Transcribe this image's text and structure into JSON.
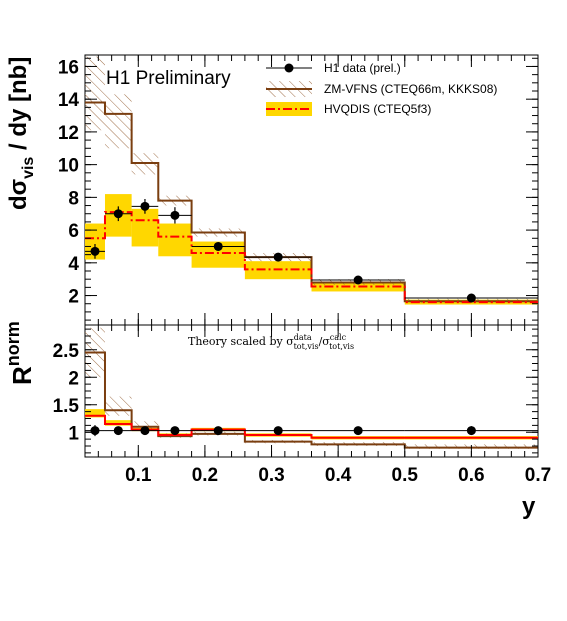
{
  "chart_data": [
    {
      "type": "line",
      "panel": "top",
      "ylabel": "dσ_vis / dy [nb]",
      "xlim": [
        0.02,
        0.7
      ],
      "ylim": [
        0.2,
        16.7
      ],
      "yticks": [
        2,
        4,
        6,
        8,
        10,
        12,
        14,
        16
      ],
      "annotation": "H1  Preliminary",
      "bin_edges": [
        0.02,
        0.05,
        0.09,
        0.13,
        0.18,
        0.26,
        0.36,
        0.5,
        0.7
      ],
      "series": [
        {
          "name": "H1 data (prel.)",
          "kind": "points",
          "x": [
            0.035,
            0.07,
            0.11,
            0.155,
            0.22,
            0.31,
            0.43,
            0.6
          ],
          "y": [
            4.7,
            7.0,
            7.45,
            6.9,
            5.0,
            4.35,
            2.95,
            1.85
          ],
          "yerr": [
            0.45,
            0.45,
            0.45,
            0.5,
            0.25,
            0.2,
            0.15,
            0.15
          ],
          "color": "#000000"
        },
        {
          "name": "ZM-VFNS (CTEQ66m, KKKS08)",
          "kind": "step-band",
          "values": [
            13.8,
            13.1,
            10.1,
            7.8,
            5.85,
            4.35,
            2.8,
            1.65
          ],
          "band_low": [
            12.1,
            11.0,
            9.4,
            7.5,
            5.6,
            4.1,
            2.65,
            1.55
          ],
          "band_high": [
            16.6,
            14.3,
            10.7,
            8.1,
            6.1,
            4.6,
            3.0,
            1.8
          ],
          "color": "#7a3e10"
        },
        {
          "name": "HVQDIS (CTEQ5f3)",
          "kind": "step-band",
          "values": [
            5.5,
            7.1,
            6.6,
            5.6,
            4.6,
            3.6,
            2.55,
            1.6
          ],
          "band_low": [
            4.2,
            5.6,
            5.0,
            4.4,
            3.7,
            3.0,
            2.25,
            1.45
          ],
          "band_high": [
            6.4,
            8.2,
            7.3,
            6.4,
            5.3,
            4.1,
            2.8,
            1.75
          ],
          "color": "#ff0000",
          "band_color": "#ffd700"
        }
      ]
    },
    {
      "type": "line",
      "panel": "bottom",
      "ylabel": "R^norm",
      "xlabel": "y",
      "xlim": [
        0.02,
        0.7
      ],
      "ylim": [
        0.55,
        2.95
      ],
      "yticks": [
        1,
        1.5,
        2,
        2.5
      ],
      "xticks": [
        0.1,
        0.2,
        0.3,
        0.4,
        0.5,
        0.6,
        0.7
      ],
      "annotation": "Theory scaled by σ^data_tot,vis/σ^calc_tot,vis",
      "bin_edges": [
        0.02,
        0.05,
        0.09,
        0.13,
        0.18,
        0.26,
        0.36,
        0.5,
        0.7
      ],
      "series": [
        {
          "name": "H1 data (prel.)",
          "kind": "points",
          "x": [
            0.035,
            0.07,
            0.11,
            0.155,
            0.22,
            0.31,
            0.43,
            0.6
          ],
          "y": [
            1.03,
            1.03,
            1.03,
            1.03,
            1.03,
            1.03,
            1.03,
            1.03
          ],
          "yerr": [
            0.1,
            0.06,
            0.06,
            0.06,
            0.05,
            0.05,
            0.05,
            0.08
          ],
          "color": "#000000"
        },
        {
          "name": "ZM-VFNS (CTEQ66m, KKKS08)",
          "kind": "step-band",
          "values": [
            2.45,
            1.4,
            1.1,
            0.93,
            0.97,
            0.83,
            0.78,
            0.72
          ],
          "band_low": [
            2.0,
            1.3,
            1.05,
            0.9,
            0.94,
            0.8,
            0.75,
            0.7
          ],
          "band_high": [
            2.9,
            1.65,
            1.2,
            0.98,
            1.01,
            0.86,
            0.82,
            0.78
          ],
          "color": "#7a3e10"
        },
        {
          "name": "HVQDIS (CTEQ5f3)",
          "kind": "step-band",
          "values": [
            1.3,
            1.15,
            1.05,
            0.95,
            1.05,
            0.95,
            0.9,
            0.9
          ],
          "band_low": [
            1.27,
            1.12,
            1.02,
            0.92,
            1.02,
            0.92,
            0.87,
            0.87
          ],
          "band_high": [
            1.42,
            1.22,
            1.08,
            0.98,
            1.08,
            0.98,
            0.93,
            0.93
          ],
          "color": "#ff0000",
          "band_color": "#ffd700"
        }
      ]
    }
  ],
  "legend": {
    "data": "H1 data (prel.)",
    "zmvfns": "ZM-VFNS (CTEQ66m, KKKS08)",
    "hvqdis": "HVQDIS (CTEQ5f3)"
  },
  "labels": {
    "top_ylabel_main": "dσ",
    "top_ylabel_sub": "vis",
    "top_ylabel_tail": " / dy [nb]",
    "bottom_ylabel_main": "R",
    "bottom_ylabel_sup": "norm",
    "xlabel": "y",
    "prelim": "H1  Preliminary",
    "note_prefix": "Theory scaled by σ",
    "note_sup1": "data",
    "note_sub1": "tot,vis",
    "note_mid": "/σ",
    "note_sup2": "calc",
    "note_sub2": "tot,vis"
  },
  "colors": {
    "zmvfns_line": "#7a3e10",
    "zmvfns_hatch": "#b48a6a",
    "hvqdis_line": "#ff0000",
    "hvqdis_band": "#ffd700"
  }
}
